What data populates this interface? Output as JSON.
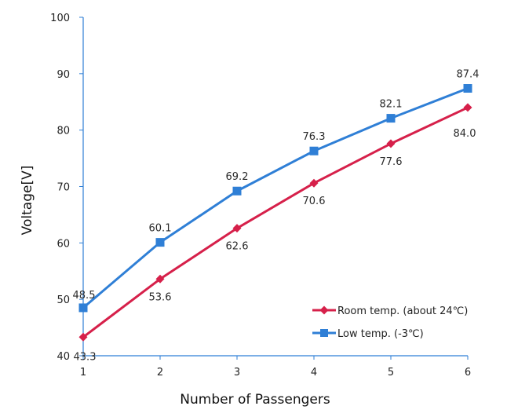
{
  "chart_data": {
    "type": "line",
    "title": "",
    "xlabel": "Number of Passengers",
    "ylabel": "Voltage[V]",
    "x": [
      1,
      2,
      3,
      4,
      5,
      6
    ],
    "xlim": [
      1,
      6
    ],
    "ylim": [
      40,
      100
    ],
    "x_ticks": [
      "1",
      "2",
      "3",
      "4",
      "5",
      "6"
    ],
    "y_ticks": [
      "40",
      "50",
      "60",
      "70",
      "80",
      "90",
      "100"
    ],
    "grid": false,
    "legend_position": "bottom-right",
    "series": [
      {
        "name": "Room temp. (about 24℃)",
        "color": "#d6204a",
        "marker": "diamond",
        "values": [
          43.3,
          53.6,
          62.6,
          70.6,
          77.6,
          84.0
        ],
        "labels": [
          "43.3",
          "53.6",
          "62.6",
          "70.6",
          "77.6",
          "84.0"
        ]
      },
      {
        "name": "Low temp. (-3℃)",
        "color": "#2f7fd6",
        "marker": "square",
        "values": [
          48.5,
          60.1,
          69.2,
          76.3,
          82.1,
          87.4
        ],
        "labels": [
          "48.5",
          "60.1",
          "69.2",
          "76.3",
          "82.1",
          "87.4"
        ]
      }
    ]
  }
}
